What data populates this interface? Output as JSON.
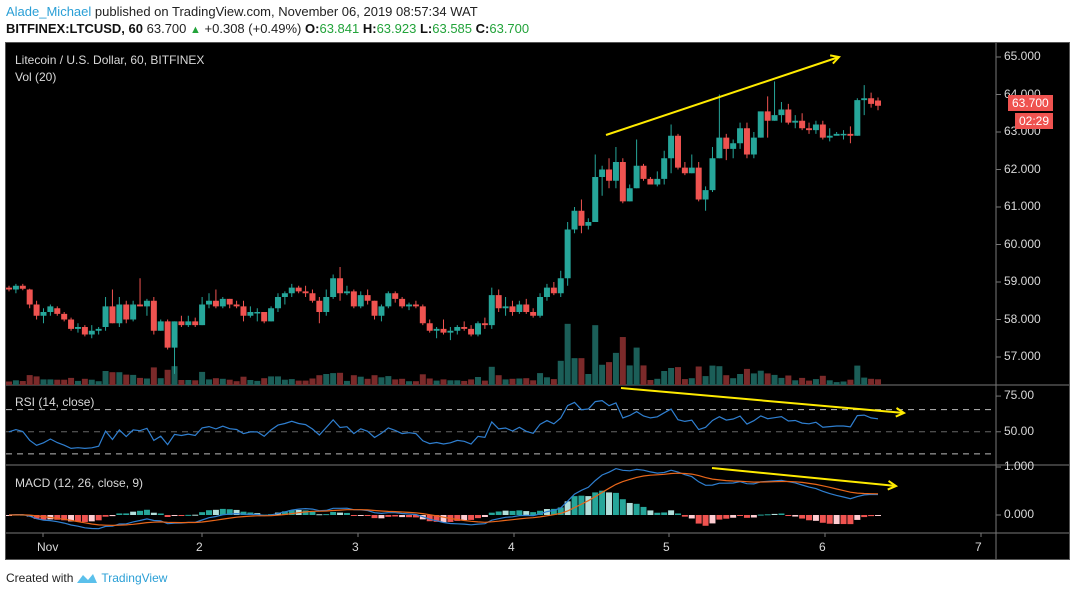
{
  "header": {
    "author": "Alade_Michael",
    "published_text": "published on TradingView.com, November 06, 2019 08:57:34 WAT",
    "symbol": "BITFINEX:LTCUSD, 60",
    "last": "63.700",
    "change": "+0.308 (+0.49%)",
    "open_label": "O:",
    "open": "63.841",
    "high_label": "H:",
    "high": "63.923",
    "low_label": "L:",
    "low": "63.585",
    "close_label": "C:",
    "close": "63.700"
  },
  "pane_main": {
    "title": "Litecoin / U.S. Dollar, 60, BITFINEX",
    "volume_label": "Vol (20)",
    "price_ticks": [
      "65.000",
      "64.000",
      "63.000",
      "62.000",
      "61.000",
      "60.000",
      "59.000",
      "58.000",
      "57.000"
    ],
    "last_price_tag": "63.700",
    "countdown_tag": "02:29"
  },
  "pane_rsi": {
    "title": "RSI (14, close)",
    "ticks": [
      "75.00",
      "50.00"
    ]
  },
  "pane_macd": {
    "title": "MACD (12, 26, close, 9)",
    "ticks": [
      "1.000",
      "0.000"
    ]
  },
  "time_axis": [
    "Nov",
    "2",
    "3",
    "4",
    "5",
    "6",
    "7"
  ],
  "footer": {
    "created_with": "Created with",
    "brand": "TradingView"
  },
  "colors": {
    "up": "#26a69a",
    "down": "#ef5350",
    "vol_up": "#1b5e58",
    "vol_down": "#7b2a2a",
    "rsi": "#2f7fd0",
    "macd": "#2f7fd0",
    "signal": "#e8661a",
    "annotation": "#ffeb00",
    "author": "#2a9fd6"
  },
  "chart_data": {
    "type": "candlestick",
    "title": "Litecoin / U.S. Dollar, 60, BITFINEX",
    "symbol": "BITFINEX:LTCUSD",
    "interval": "60",
    "xlabel": "",
    "ylabel": "",
    "ylim": [
      56.2,
      65.4
    ],
    "x_ticks": [
      "Nov",
      "2",
      "3",
      "4",
      "5",
      "6",
      "7"
    ],
    "candles": [
      [
        58.85,
        58.9,
        58.75,
        58.8
      ],
      [
        58.8,
        58.95,
        58.7,
        58.9
      ],
      [
        58.9,
        58.95,
        58.78,
        58.82
      ],
      [
        58.8,
        58.82,
        58.3,
        58.4
      ],
      [
        58.4,
        58.5,
        58.0,
        58.1
      ],
      [
        58.1,
        58.3,
        57.9,
        58.2
      ],
      [
        58.2,
        58.4,
        58.1,
        58.35
      ],
      [
        58.3,
        58.35,
        58.1,
        58.15
      ],
      [
        58.15,
        58.2,
        57.95,
        58.0
      ],
      [
        58.0,
        58.05,
        57.7,
        57.75
      ],
      [
        57.75,
        57.9,
        57.65,
        57.8
      ],
      [
        57.8,
        57.85,
        57.55,
        57.6
      ],
      [
        57.6,
        57.85,
        57.5,
        57.7
      ],
      [
        57.7,
        57.8,
        57.6,
        57.75
      ],
      [
        57.8,
        58.6,
        57.7,
        58.35
      ],
      [
        58.35,
        58.8,
        57.9,
        57.9
      ],
      [
        57.9,
        58.6,
        57.8,
        58.4
      ],
      [
        58.4,
        58.5,
        57.9,
        58.0
      ],
      [
        58.0,
        58.5,
        57.95,
        58.4
      ],
      [
        58.4,
        59.1,
        58.35,
        58.35
      ],
      [
        58.35,
        58.55,
        58.1,
        58.5
      ],
      [
        58.5,
        58.6,
        57.6,
        57.7
      ],
      [
        57.7,
        58.0,
        57.7,
        57.95
      ],
      [
        57.95,
        58.0,
        57.2,
        57.25
      ],
      [
        57.25,
        57.95,
        56.55,
        57.95
      ],
      [
        57.95,
        58.1,
        57.8,
        57.85
      ],
      [
        57.85,
        58.1,
        57.8,
        57.95
      ],
      [
        57.95,
        58.05,
        57.8,
        57.85
      ],
      [
        57.85,
        58.6,
        57.85,
        58.4
      ],
      [
        58.4,
        58.7,
        58.3,
        58.5
      ],
      [
        58.5,
        58.8,
        58.3,
        58.35
      ],
      [
        58.35,
        58.6,
        58.3,
        58.55
      ],
      [
        58.55,
        58.55,
        58.3,
        58.4
      ],
      [
        58.4,
        58.5,
        58.3,
        58.35
      ],
      [
        58.35,
        58.5,
        57.95,
        58.1
      ],
      [
        58.1,
        58.35,
        58.05,
        58.2
      ],
      [
        58.2,
        58.3,
        57.95,
        58.2
      ],
      [
        58.2,
        58.2,
        57.9,
        57.95
      ],
      [
        57.95,
        58.35,
        57.95,
        58.3
      ],
      [
        58.3,
        58.7,
        58.2,
        58.6
      ],
      [
        58.6,
        58.75,
        58.4,
        58.7
      ],
      [
        58.7,
        58.95,
        58.6,
        58.85
      ],
      [
        58.85,
        58.9,
        58.7,
        58.75
      ],
      [
        58.75,
        58.9,
        58.6,
        58.7
      ],
      [
        58.7,
        58.8,
        58.45,
        58.5
      ],
      [
        58.5,
        58.6,
        57.9,
        58.2
      ],
      [
        58.2,
        58.8,
        58.1,
        58.6
      ],
      [
        58.6,
        59.2,
        58.55,
        59.1
      ],
      [
        59.1,
        59.4,
        58.5,
        58.7
      ],
      [
        58.7,
        58.9,
        58.65,
        58.75
      ],
      [
        58.75,
        58.8,
        58.3,
        58.35
      ],
      [
        58.35,
        58.75,
        58.3,
        58.65
      ],
      [
        58.65,
        58.8,
        58.4,
        58.5
      ],
      [
        58.5,
        58.5,
        58.0,
        58.1
      ],
      [
        58.1,
        58.4,
        57.95,
        58.35
      ],
      [
        58.35,
        58.75,
        58.3,
        58.7
      ],
      [
        58.7,
        58.75,
        58.45,
        58.55
      ],
      [
        58.55,
        58.6,
        58.3,
        58.35
      ],
      [
        58.35,
        58.45,
        58.25,
        58.4
      ],
      [
        58.4,
        58.5,
        58.3,
        58.35
      ],
      [
        58.35,
        58.4,
        57.85,
        57.9
      ],
      [
        57.9,
        58.0,
        57.65,
        57.7
      ],
      [
        57.7,
        57.8,
        57.5,
        57.75
      ],
      [
        57.75,
        58.0,
        57.6,
        57.65
      ],
      [
        57.65,
        57.8,
        57.45,
        57.7
      ],
      [
        57.7,
        57.85,
        57.6,
        57.8
      ],
      [
        57.8,
        57.95,
        57.7,
        57.75
      ],
      [
        57.75,
        57.85,
        57.55,
        57.6
      ],
      [
        57.6,
        57.95,
        57.55,
        57.9
      ],
      [
        57.9,
        58.05,
        57.75,
        57.85
      ],
      [
        57.85,
        58.85,
        57.75,
        58.65
      ],
      [
        58.65,
        58.8,
        58.2,
        58.3
      ],
      [
        58.3,
        58.6,
        58.1,
        58.35
      ],
      [
        58.35,
        58.5,
        58.1,
        58.2
      ],
      [
        58.2,
        58.5,
        58.15,
        58.4
      ],
      [
        58.4,
        58.55,
        58.15,
        58.2
      ],
      [
        58.2,
        58.3,
        58.05,
        58.1
      ],
      [
        58.1,
        58.7,
        58.05,
        58.6
      ],
      [
        58.6,
        58.95,
        58.5,
        58.85
      ],
      [
        58.85,
        59.0,
        58.65,
        58.7
      ],
      [
        58.7,
        59.3,
        58.6,
        59.1
      ],
      [
        59.1,
        60.6,
        58.9,
        60.4
      ],
      [
        60.4,
        61.0,
        60.3,
        60.9
      ],
      [
        60.9,
        61.2,
        60.3,
        60.5
      ],
      [
        60.5,
        60.7,
        60.4,
        60.6
      ],
      [
        60.6,
        62.4,
        60.6,
        61.8
      ],
      [
        61.8,
        62.1,
        61.3,
        62.0
      ],
      [
        62.0,
        62.3,
        61.5,
        61.7
      ],
      [
        61.7,
        62.6,
        61.5,
        62.2
      ],
      [
        62.2,
        62.3,
        61.1,
        61.15
      ],
      [
        61.15,
        61.6,
        61.15,
        61.5
      ],
      [
        61.5,
        62.8,
        61.5,
        62.1
      ],
      [
        62.1,
        62.15,
        61.7,
        61.75
      ],
      [
        61.75,
        61.8,
        61.6,
        61.6
      ],
      [
        61.6,
        61.95,
        61.55,
        61.75
      ],
      [
        61.75,
        62.5,
        61.6,
        62.3
      ],
      [
        62.3,
        63.2,
        61.9,
        62.9
      ],
      [
        62.9,
        62.95,
        62.0,
        62.05
      ],
      [
        62.05,
        62.2,
        61.85,
        61.9
      ],
      [
        61.9,
        62.4,
        61.9,
        62.05
      ],
      [
        62.05,
        62.2,
        61.15,
        61.2
      ],
      [
        61.2,
        61.55,
        60.9,
        61.45
      ],
      [
        61.45,
        62.6,
        61.4,
        62.3
      ],
      [
        62.3,
        64.0,
        62.3,
        62.85
      ],
      [
        62.85,
        62.95,
        62.25,
        62.55
      ],
      [
        62.55,
        62.8,
        62.3,
        62.7
      ],
      [
        62.7,
        63.25,
        62.55,
        63.1
      ],
      [
        63.1,
        63.25,
        62.3,
        62.4
      ],
      [
        62.4,
        63.0,
        62.3,
        62.85
      ],
      [
        62.85,
        63.5,
        62.85,
        63.55
      ],
      [
        63.55,
        63.95,
        62.85,
        63.3
      ],
      [
        63.3,
        64.35,
        63.3,
        63.45
      ],
      [
        63.45,
        63.8,
        63.25,
        63.6
      ],
      [
        63.6,
        63.75,
        63.2,
        63.25
      ],
      [
        63.25,
        63.45,
        63.1,
        63.3
      ],
      [
        63.3,
        63.5,
        63.05,
        63.1
      ],
      [
        63.1,
        63.25,
        62.95,
        63.05
      ],
      [
        63.05,
        63.3,
        62.95,
        63.2
      ],
      [
        63.2,
        63.3,
        62.8,
        62.85
      ],
      [
        62.85,
        63.1,
        62.75,
        62.9
      ],
      [
        62.9,
        63.0,
        62.95,
        62.95
      ],
      [
        62.95,
        63.05,
        62.8,
        62.95
      ],
      [
        62.95,
        63.15,
        62.7,
        62.9
      ],
      [
        62.9,
        63.9,
        62.9,
        63.85
      ],
      [
        63.85,
        64.25,
        63.45,
        63.9
      ],
      [
        63.9,
        64.05,
        63.65,
        63.75
      ],
      [
        63.84,
        63.92,
        63.58,
        63.7
      ]
    ],
    "rsi": {
      "name": "RSI (14, close)",
      "levels": [
        70,
        50,
        30
      ],
      "ylim": [
        20,
        85
      ]
    },
    "macd": {
      "name": "MACD (12, 26, close, 9)",
      "ylim": [
        -0.35,
        1.2
      ]
    }
  }
}
